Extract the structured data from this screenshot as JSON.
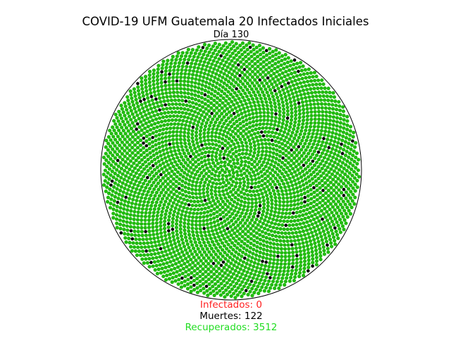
{
  "chart_data": {
    "type": "scatter",
    "title": "COVID-19 UFM Guatemala 20 Infectados Iniciales",
    "subtitle": "Día 130",
    "layout": "circular-sunflower",
    "population": 3634,
    "series": [
      {
        "status": "recovered",
        "color": "#22bb11"
      },
      {
        "status": "dead",
        "color": "#000000"
      },
      {
        "status": "susceptible",
        "color": "#d0d0d0"
      },
      {
        "status": "infected",
        "color": "#ff2222"
      }
    ],
    "counts": {
      "infected": 0,
      "dead": 122,
      "recovered": 3512
    }
  },
  "stats": {
    "infected_label": "Infectados: 0",
    "deaths_label": "Muertes: 122",
    "recovered_label": "Recuperados: 3512"
  },
  "colors": {
    "infected_text": "#ff2020",
    "deaths_text": "#000000",
    "recovered_text": "#22dd22",
    "outline": "#000000"
  }
}
